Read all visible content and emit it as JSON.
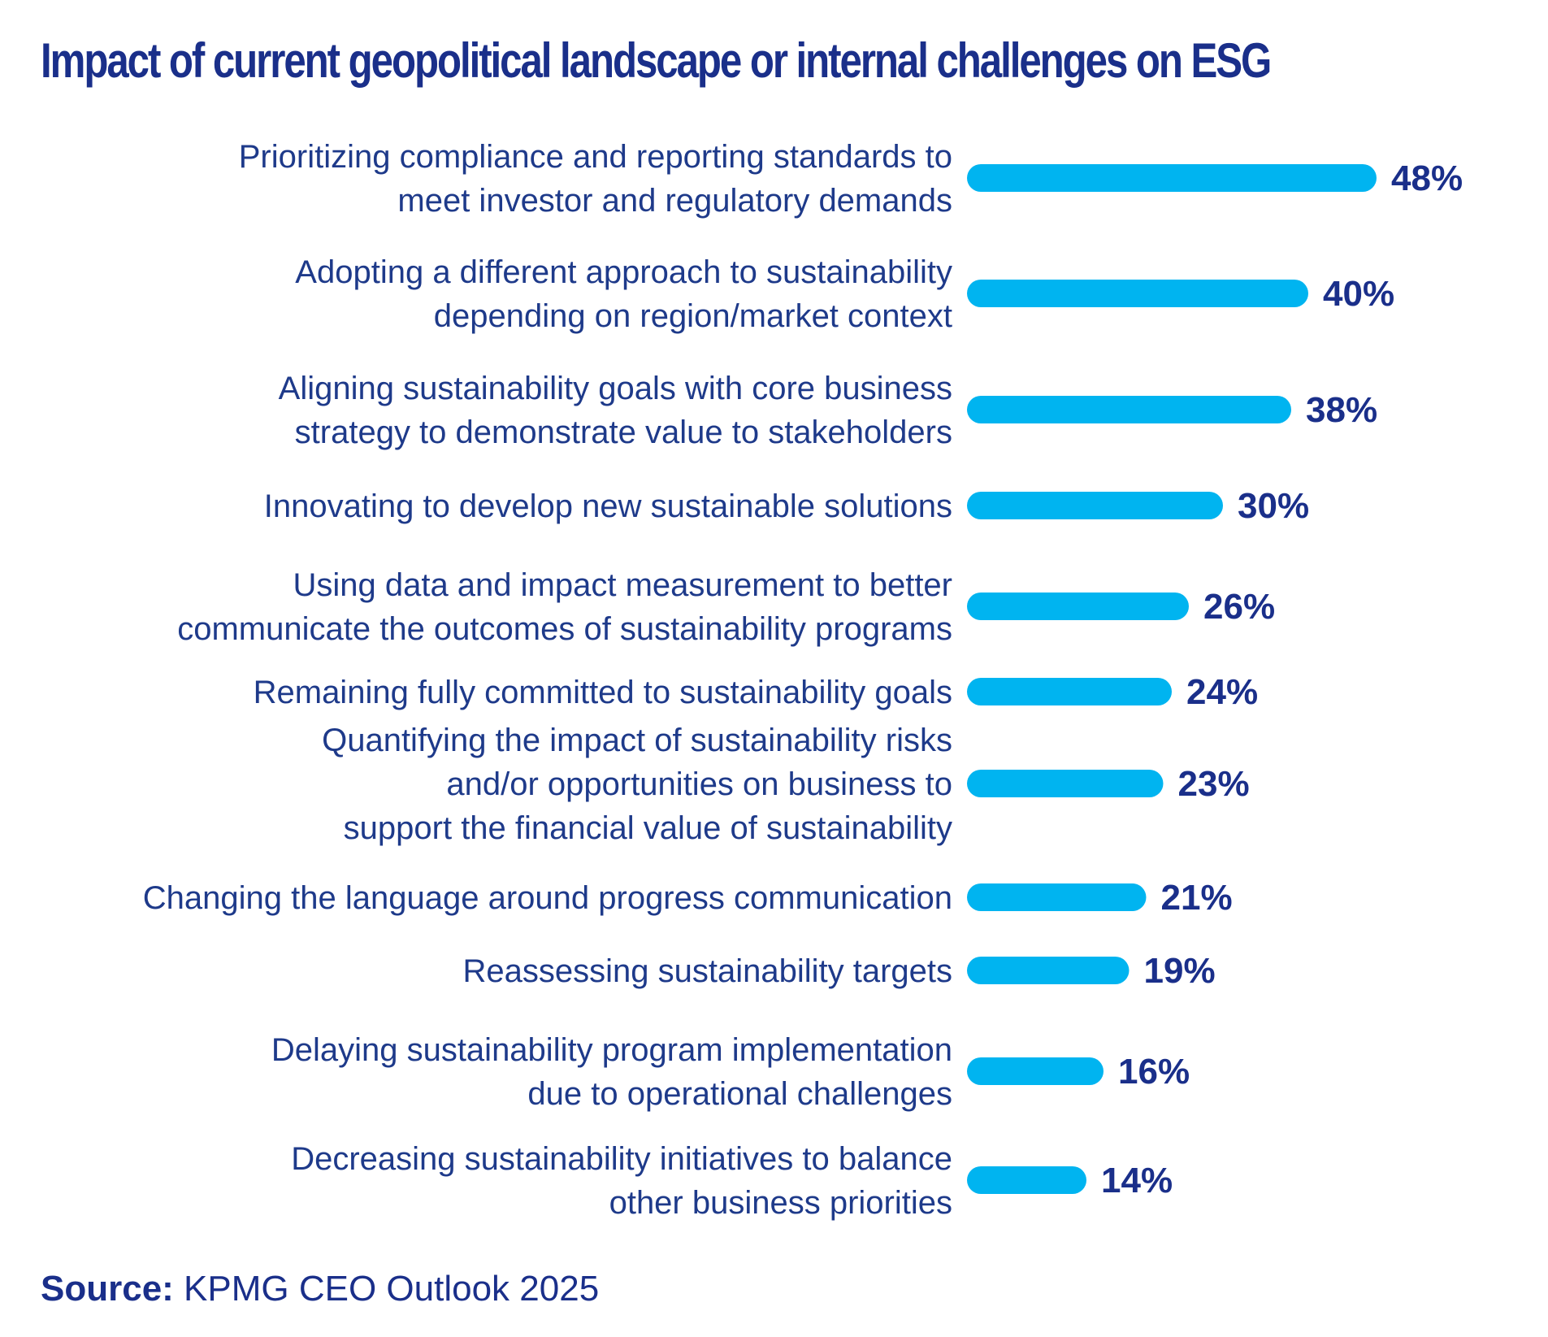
{
  "chart_data": {
    "type": "bar",
    "orientation": "horizontal",
    "title": "Impact of current geopolitical landscape or internal challenges on ESG",
    "categories": [
      [
        "Prioritizing compliance and reporting standards to",
        "meet investor and regulatory demands"
      ],
      [
        "Adopting a different approach to sustainability",
        "depending on region/market context"
      ],
      [
        "Aligning sustainability goals with core business",
        "strategy to demonstrate value to stakeholders"
      ],
      [
        "Innovating to develop new sustainable solutions"
      ],
      [
        "Using data and impact measurement to better",
        "communicate the outcomes of sustainability programs"
      ],
      [
        "Remaining fully committed to sustainability goals"
      ],
      [
        "Quantifying the impact of sustainability risks",
        "and/or opportunities on business to",
        "support the financial value of sustainability"
      ],
      [
        "Changing the language around progress communication"
      ],
      [
        "Reassessing sustainability targets"
      ],
      [
        "Delaying sustainability program implementation",
        "due to operational challenges"
      ],
      [
        "Decreasing sustainability initiatives to balance",
        "other business priorities"
      ]
    ],
    "values": [
      48,
      40,
      38,
      30,
      26,
      24,
      23,
      21,
      19,
      16,
      14
    ],
    "value_labels": [
      "48%",
      "40%",
      "38%",
      "30%",
      "26%",
      "24%",
      "23%",
      "21%",
      "19%",
      "16%",
      "14%"
    ],
    "xlim": [
      0,
      100
    ],
    "grid": false,
    "legend": "none",
    "bar_color": "#00b4f0",
    "label_color": "#1e3a8a",
    "value_color": "#1a2f8a"
  },
  "source": {
    "prefix": "Source:",
    "text": " KPMG CEO Outlook 2025"
  }
}
